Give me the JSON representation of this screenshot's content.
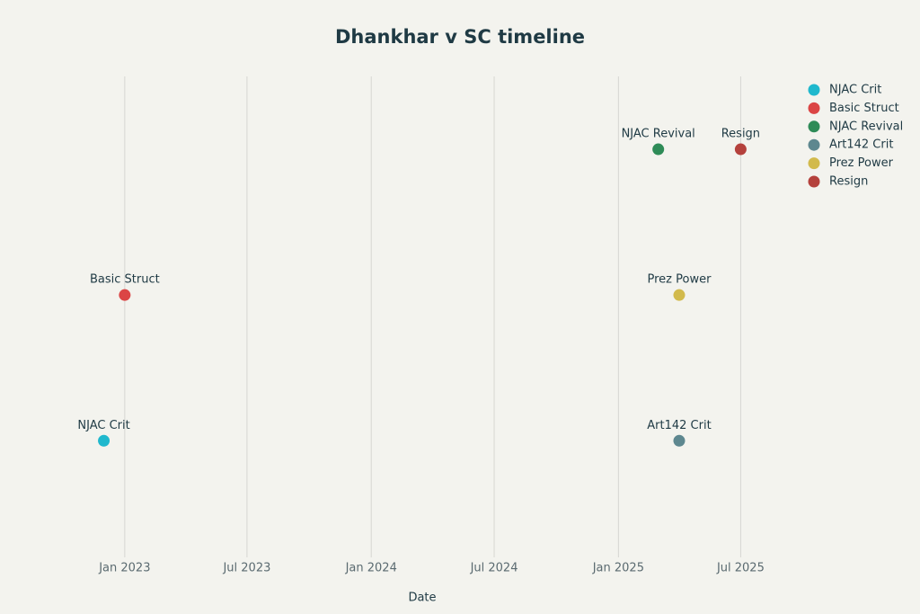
{
  "chart_data": {
    "type": "scatter",
    "title": "Dhankhar v SC timeline",
    "x_label": "Date",
    "xlim": [
      "2022-11",
      "2025-09"
    ],
    "xticks": [
      {
        "value": "2023-01",
        "label": "Jan 2023"
      },
      {
        "value": "2023-07",
        "label": "Jul 2023"
      },
      {
        "value": "2024-01",
        "label": "Jan 2024"
      },
      {
        "value": "2024-07",
        "label": "Jul 2024"
      },
      {
        "value": "2025-01",
        "label": "Jan 2025"
      },
      {
        "value": "2025-07",
        "label": "Jul 2025"
      }
    ],
    "ylim": [
      0.2,
      3.5
    ],
    "grid": true,
    "legend": "top-right",
    "series": [
      {
        "name": "NJAC Crit",
        "color": "#1fb8cd",
        "x": [
          "2022-12"
        ],
        "values": [
          1
        ]
      },
      {
        "name": "Basic Struct",
        "color": "#db4545",
        "x": [
          "2023-01"
        ],
        "values": [
          2
        ]
      },
      {
        "name": "NJAC Revival",
        "color": "#2e8b57",
        "x": [
          "2025-03"
        ],
        "values": [
          3
        ]
      },
      {
        "name": "Art142 Crit",
        "color": "#5d878f",
        "x": [
          "2025-04"
        ],
        "values": [
          1
        ]
      },
      {
        "name": "Prez Power",
        "color": "#d2ba4c",
        "x": [
          "2025-04"
        ],
        "values": [
          2
        ]
      },
      {
        "name": "Resign",
        "color": "#b4413c",
        "x": [
          "2025-07"
        ],
        "values": [
          3
        ]
      }
    ]
  }
}
